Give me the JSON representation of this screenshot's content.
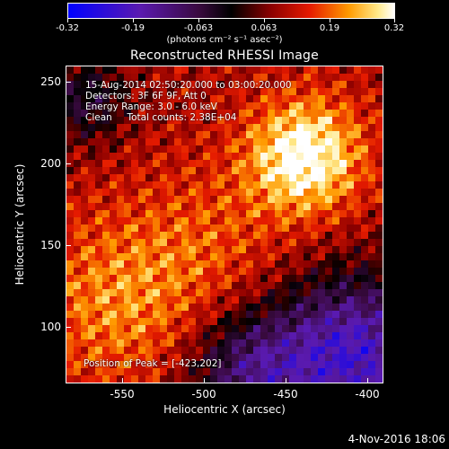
{
  "colorbar": {
    "tick_labels": [
      "-0.32",
      "-0.19",
      "-0.063",
      "0.063",
      "0.19",
      "0.32"
    ],
    "units": "(photons cm⁻² s⁻¹ asec⁻²)"
  },
  "title": "Reconstructed RHESSI Image",
  "info": {
    "time_range": "15-Aug-2014 02:50:20.000 to 03:00:20.000",
    "detectors": "Detectors: 3F 6F 9F, Att 0",
    "energy": "Energy Range: 3.0 - 6.0 keV",
    "clean": "Clean     Total counts: 2.38E+04"
  },
  "peak": "Position of Peak = [-423,202]",
  "axes": {
    "xlabel": "Heliocentric X (arcsec)",
    "ylabel": "Heliocentric Y (arcsec)",
    "x_ticks": [
      "-550",
      "-500",
      "-450",
      "-400"
    ],
    "y_ticks": [
      "100",
      "150",
      "200",
      "250"
    ]
  },
  "footer": {
    "date": "4-Nov-2016 18:06"
  },
  "colors": {
    "map_low": "#0000ff",
    "map_mid_low": "#7a1a9a",
    "map_zero": "#000000",
    "map_mid_high": "#e51a00",
    "map_high": "#ffffff"
  }
}
